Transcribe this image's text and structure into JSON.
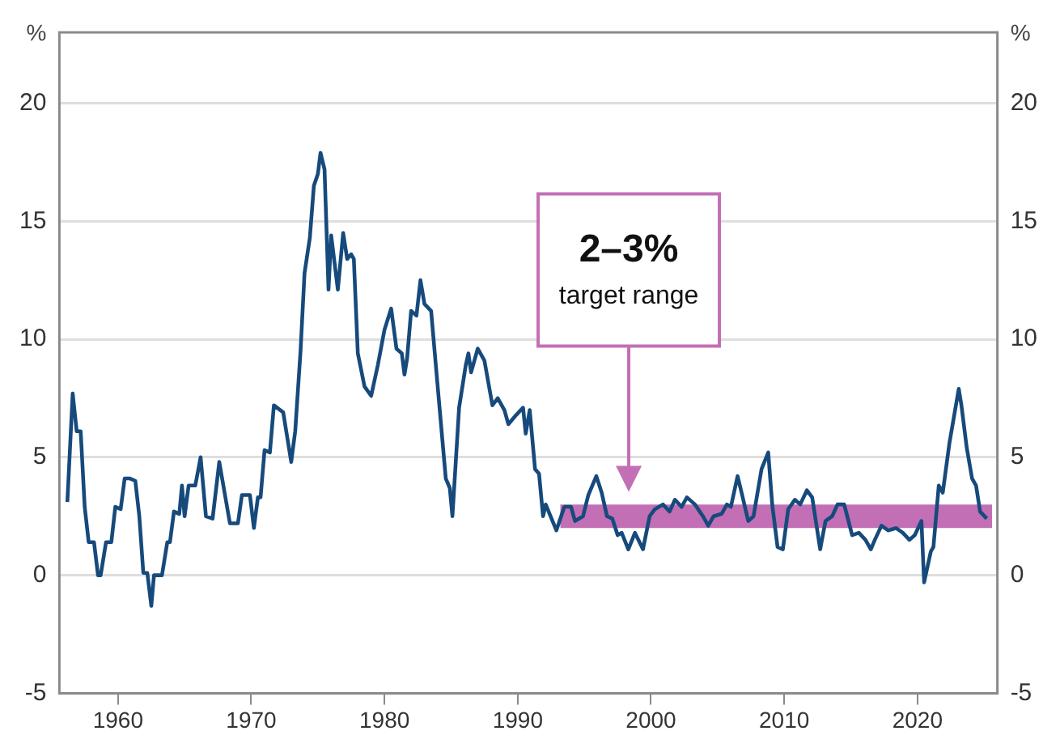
{
  "chart_data": {
    "type": "line",
    "ylabel": "%",
    "y2label": "%",
    "xlim": [
      1955.6,
      2026
    ],
    "xticks": [
      1960,
      1970,
      1980,
      1990,
      2000,
      2010,
      2020
    ],
    "ylim": [
      -5,
      23
    ],
    "yticks": [
      -5,
      0,
      5,
      10,
      15,
      20
    ],
    "y2lim": [
      -5,
      23
    ],
    "y2ticks": [
      -5,
      0,
      5,
      10,
      15,
      20
    ],
    "grid": "y",
    "legend": false,
    "marker": "none",
    "line_style": "solid",
    "annotations": [
      "2–3% target range"
    ],
    "series": [
      {
        "type": "area",
        "color": "#c36fb5",
        "x": [
          1993.2,
          2025.6
        ],
        "values": [
          null,
          null
        ],
        "lower": [
          2,
          2
        ],
        "upper": [
          3,
          3
        ]
      },
      {
        "type": "line",
        "color": "#174a7c",
        "x": [
          1956.2,
          1956.6,
          1956.9,
          1957.2,
          1957.5,
          1957.8,
          1958.2,
          1958.5,
          1958.7,
          1959.1,
          1959.5,
          1959.8,
          1960.2,
          1960.5,
          1960.9,
          1961.3,
          1961.6,
          1961.9,
          1962.2,
          1962.5,
          1962.7,
          1963.3,
          1963.7,
          1963.9,
          1964.2,
          1964.6,
          1964.8,
          1965.0,
          1965.3,
          1965.8,
          1966.2,
          1966.6,
          1967.1,
          1967.6,
          1968.0,
          1968.4,
          1969.0,
          1969.3,
          1969.9,
          1970.2,
          1970.5,
          1970.7,
          1971.0,
          1971.4,
          1971.7,
          1972.4,
          1973.0,
          1973.3,
          1973.7,
          1974.0,
          1974.4,
          1974.7,
          1975.0,
          1975.2,
          1975.5,
          1975.8,
          1976.0,
          1976.5,
          1976.9,
          1977.2,
          1977.5,
          1977.7,
          1978.0,
          1978.5,
          1979.0,
          1979.5,
          1980.0,
          1980.5,
          1980.9,
          1981.3,
          1981.5,
          1981.7,
          1982.0,
          1982.4,
          1982.7,
          1983.0,
          1983.5,
          1983.9,
          1984.6,
          1984.9,
          1985.1,
          1985.6,
          1986.1,
          1986.3,
          1986.5,
          1987.0,
          1987.5,
          1988.1,
          1988.5,
          1989.0,
          1989.3,
          1989.9,
          1990.4,
          1990.6,
          1990.9,
          1991.3,
          1991.6,
          1991.9,
          1992.1,
          1992.9,
          1993.5,
          1994.0,
          1994.3,
          1994.9,
          1995.3,
          1995.9,
          1996.3,
          1996.7,
          1997.1,
          1997.5,
          1997.8,
          1998.3,
          1998.8,
          1999.4,
          1999.9,
          2000.3,
          2000.9,
          2001.4,
          2001.8,
          2002.3,
          2002.7,
          2003.3,
          2003.9,
          2004.3,
          2004.7,
          2005.3,
          2005.7,
          2006.0,
          2006.5,
          2006.8,
          2007.3,
          2007.7,
          2008.3,
          2008.8,
          2009.1,
          2009.5,
          2009.9,
          2010.3,
          2010.8,
          2011.2,
          2011.7,
          2012.1,
          2012.7,
          2013.1,
          2013.6,
          2014.0,
          2014.5,
          2015.1,
          2015.6,
          2016.1,
          2016.5,
          2016.8,
          2017.3,
          2017.8,
          2018.4,
          2018.9,
          2019.4,
          2019.8,
          2020.3,
          2020.5,
          2021.0,
          2021.2,
          2021.6,
          2021.9,
          2022.4,
          2023.1,
          2023.3,
          2023.7,
          2024.1,
          2024.4,
          2024.7,
          2025.2
        ],
        "values": [
          3.1,
          7.7,
          6.1,
          6.1,
          2.9,
          1.4,
          1.4,
          0,
          0,
          1.4,
          1.4,
          2.9,
          2.8,
          4.1,
          4.1,
          4.0,
          2.5,
          0.1,
          0.1,
          -1.3,
          0,
          0,
          1.4,
          1.4,
          2.7,
          2.6,
          3.8,
          2.5,
          3.8,
          3.8,
          5.0,
          2.5,
          2.4,
          4.8,
          3.5,
          2.2,
          2.2,
          3.4,
          3.4,
          2.0,
          3.3,
          3.3,
          5.3,
          5.2,
          7.2,
          6.9,
          4.8,
          6.1,
          9.5,
          12.8,
          14.3,
          16.5,
          17.0,
          17.9,
          17.2,
          12.1,
          14.4,
          12.1,
          14.5,
          13.4,
          13.6,
          13.4,
          9.4,
          8.0,
          7.6,
          8.9,
          10.4,
          11.3,
          9.6,
          9.4,
          8.5,
          9.2,
          11.2,
          11.0,
          12.5,
          11.5,
          11.2,
          8.6,
          4.1,
          3.7,
          2.5,
          7.1,
          8.9,
          9.4,
          8.6,
          9.6,
          9.1,
          7.2,
          7.5,
          7.0,
          6.4,
          6.8,
          7.1,
          6.0,
          7.0,
          4.5,
          4.3,
          2.5,
          3.0,
          1.9,
          2.9,
          2.9,
          2.3,
          2.5,
          3.4,
          4.2,
          3.5,
          2.5,
          2.4,
          1.7,
          1.8,
          1.1,
          1.8,
          1.1,
          2.5,
          2.8,
          3.0,
          2.7,
          3.2,
          2.9,
          3.3,
          3.0,
          2.5,
          2.1,
          2.5,
          2.6,
          3.0,
          2.9,
          4.2,
          3.5,
          2.3,
          2.5,
          4.5,
          5.2,
          3.0,
          1.2,
          1.1,
          2.8,
          3.2,
          3.0,
          3.6,
          3.3,
          1.1,
          2.3,
          2.5,
          3.0,
          3.0,
          1.7,
          1.8,
          1.5,
          1.1,
          1.5,
          2.1,
          1.9,
          2.0,
          1.8,
          1.5,
          1.7,
          2.3,
          -0.3,
          1.0,
          1.2,
          3.8,
          3.5,
          5.6,
          7.9,
          7.2,
          5.4,
          4.1,
          3.8,
          2.7,
          2.4
        ]
      }
    ]
  }
}
